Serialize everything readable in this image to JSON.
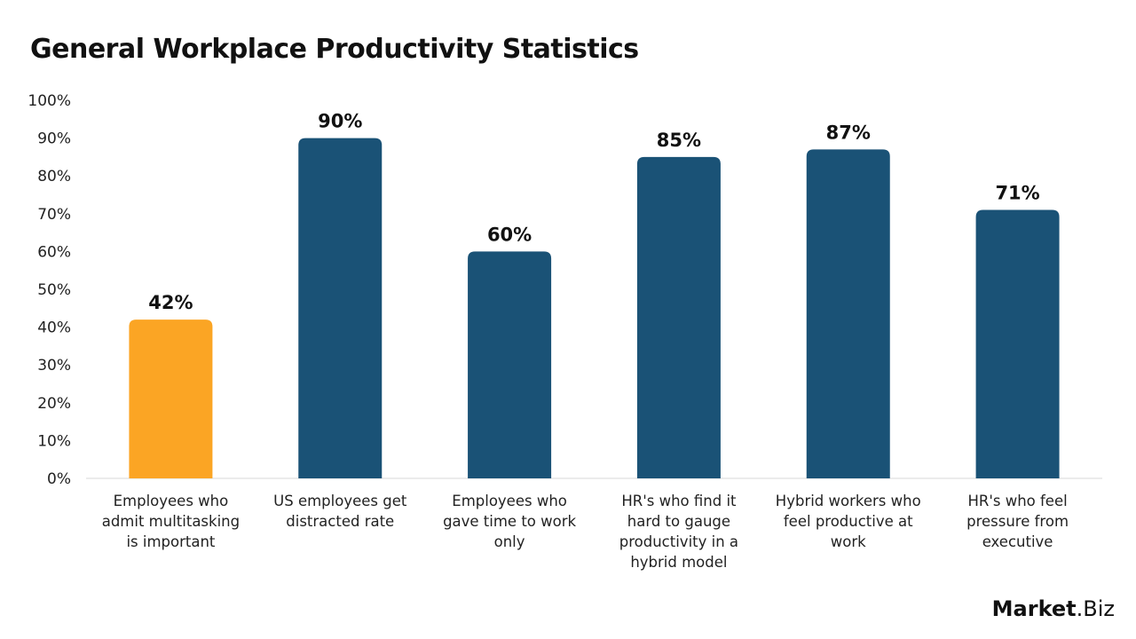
{
  "chart_data": {
    "type": "bar",
    "title": "General Workplace Productivity Statistics",
    "categories": [
      "Employees who admit multitasking is important",
      "US employees get distracted rate",
      "Employees who gave time to work only",
      "HR's who find it hard to gauge productivity in a hybrid model",
      "Hybrid workers who feel productive at work",
      "HR's who feel pressure from executive"
    ],
    "category_lines": [
      [
        "Employees who",
        "admit multitasking",
        "is important"
      ],
      [
        "US employees get",
        "distracted rate"
      ],
      [
        "Employees who",
        "gave time to work",
        "only"
      ],
      [
        "HR's who find it",
        "hard to gauge",
        "productivity in a",
        "hybrid model"
      ],
      [
        "Hybrid workers who",
        "feel productive at",
        "work"
      ],
      [
        "HR's who feel",
        "pressure from",
        "executive"
      ]
    ],
    "values": [
      42,
      90,
      60,
      85,
      87,
      71
    ],
    "data_labels": [
      "42%",
      "90%",
      "60%",
      "85%",
      "87%",
      "71%"
    ],
    "bar_colors": [
      "#FBA524",
      "#1A5276",
      "#1A5276",
      "#1A5276",
      "#1A5276",
      "#1A5276"
    ],
    "ylim": [
      0,
      100
    ],
    "yticks": [
      0,
      10,
      20,
      30,
      40,
      50,
      60,
      70,
      80,
      90,
      100
    ],
    "ytick_labels": [
      "0%",
      "10%",
      "20%",
      "30%",
      "40%",
      "50%",
      "60%",
      "70%",
      "80%",
      "90%",
      "100%"
    ],
    "xlabel": "",
    "ylabel": "",
    "grid": false
  },
  "logo": {
    "text_bold": "Market",
    "text_regular": ".Biz"
  }
}
